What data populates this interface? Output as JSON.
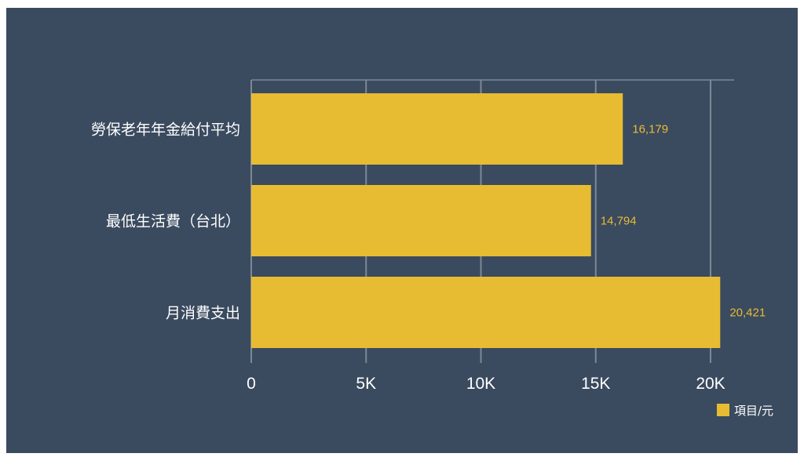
{
  "colors": {
    "background": "#3a4a5f",
    "bar": "#e8bc32",
    "grid": "#7e8896",
    "text": "#ffffff",
    "value_label": "#e8bc32"
  },
  "chart_data": {
    "type": "bar",
    "orientation": "horizontal",
    "categories": [
      "勞保老年年金給付平均",
      "最低生活費（台北）",
      "月消費支出"
    ],
    "series": [
      {
        "name": "項目/元",
        "values": [
          16179,
          14794,
          20421
        ],
        "value_labels": [
          "16,179",
          "14,794",
          "20,421"
        ]
      }
    ],
    "xlim": [
      0,
      21000
    ],
    "xticks": [
      0,
      5000,
      10000,
      15000,
      20000
    ],
    "xtick_labels": [
      "0",
      "5K",
      "10K",
      "15K",
      "20K"
    ],
    "grid": true,
    "legend": "bottom-right",
    "title": "",
    "xlabel": "",
    "ylabel": ""
  }
}
